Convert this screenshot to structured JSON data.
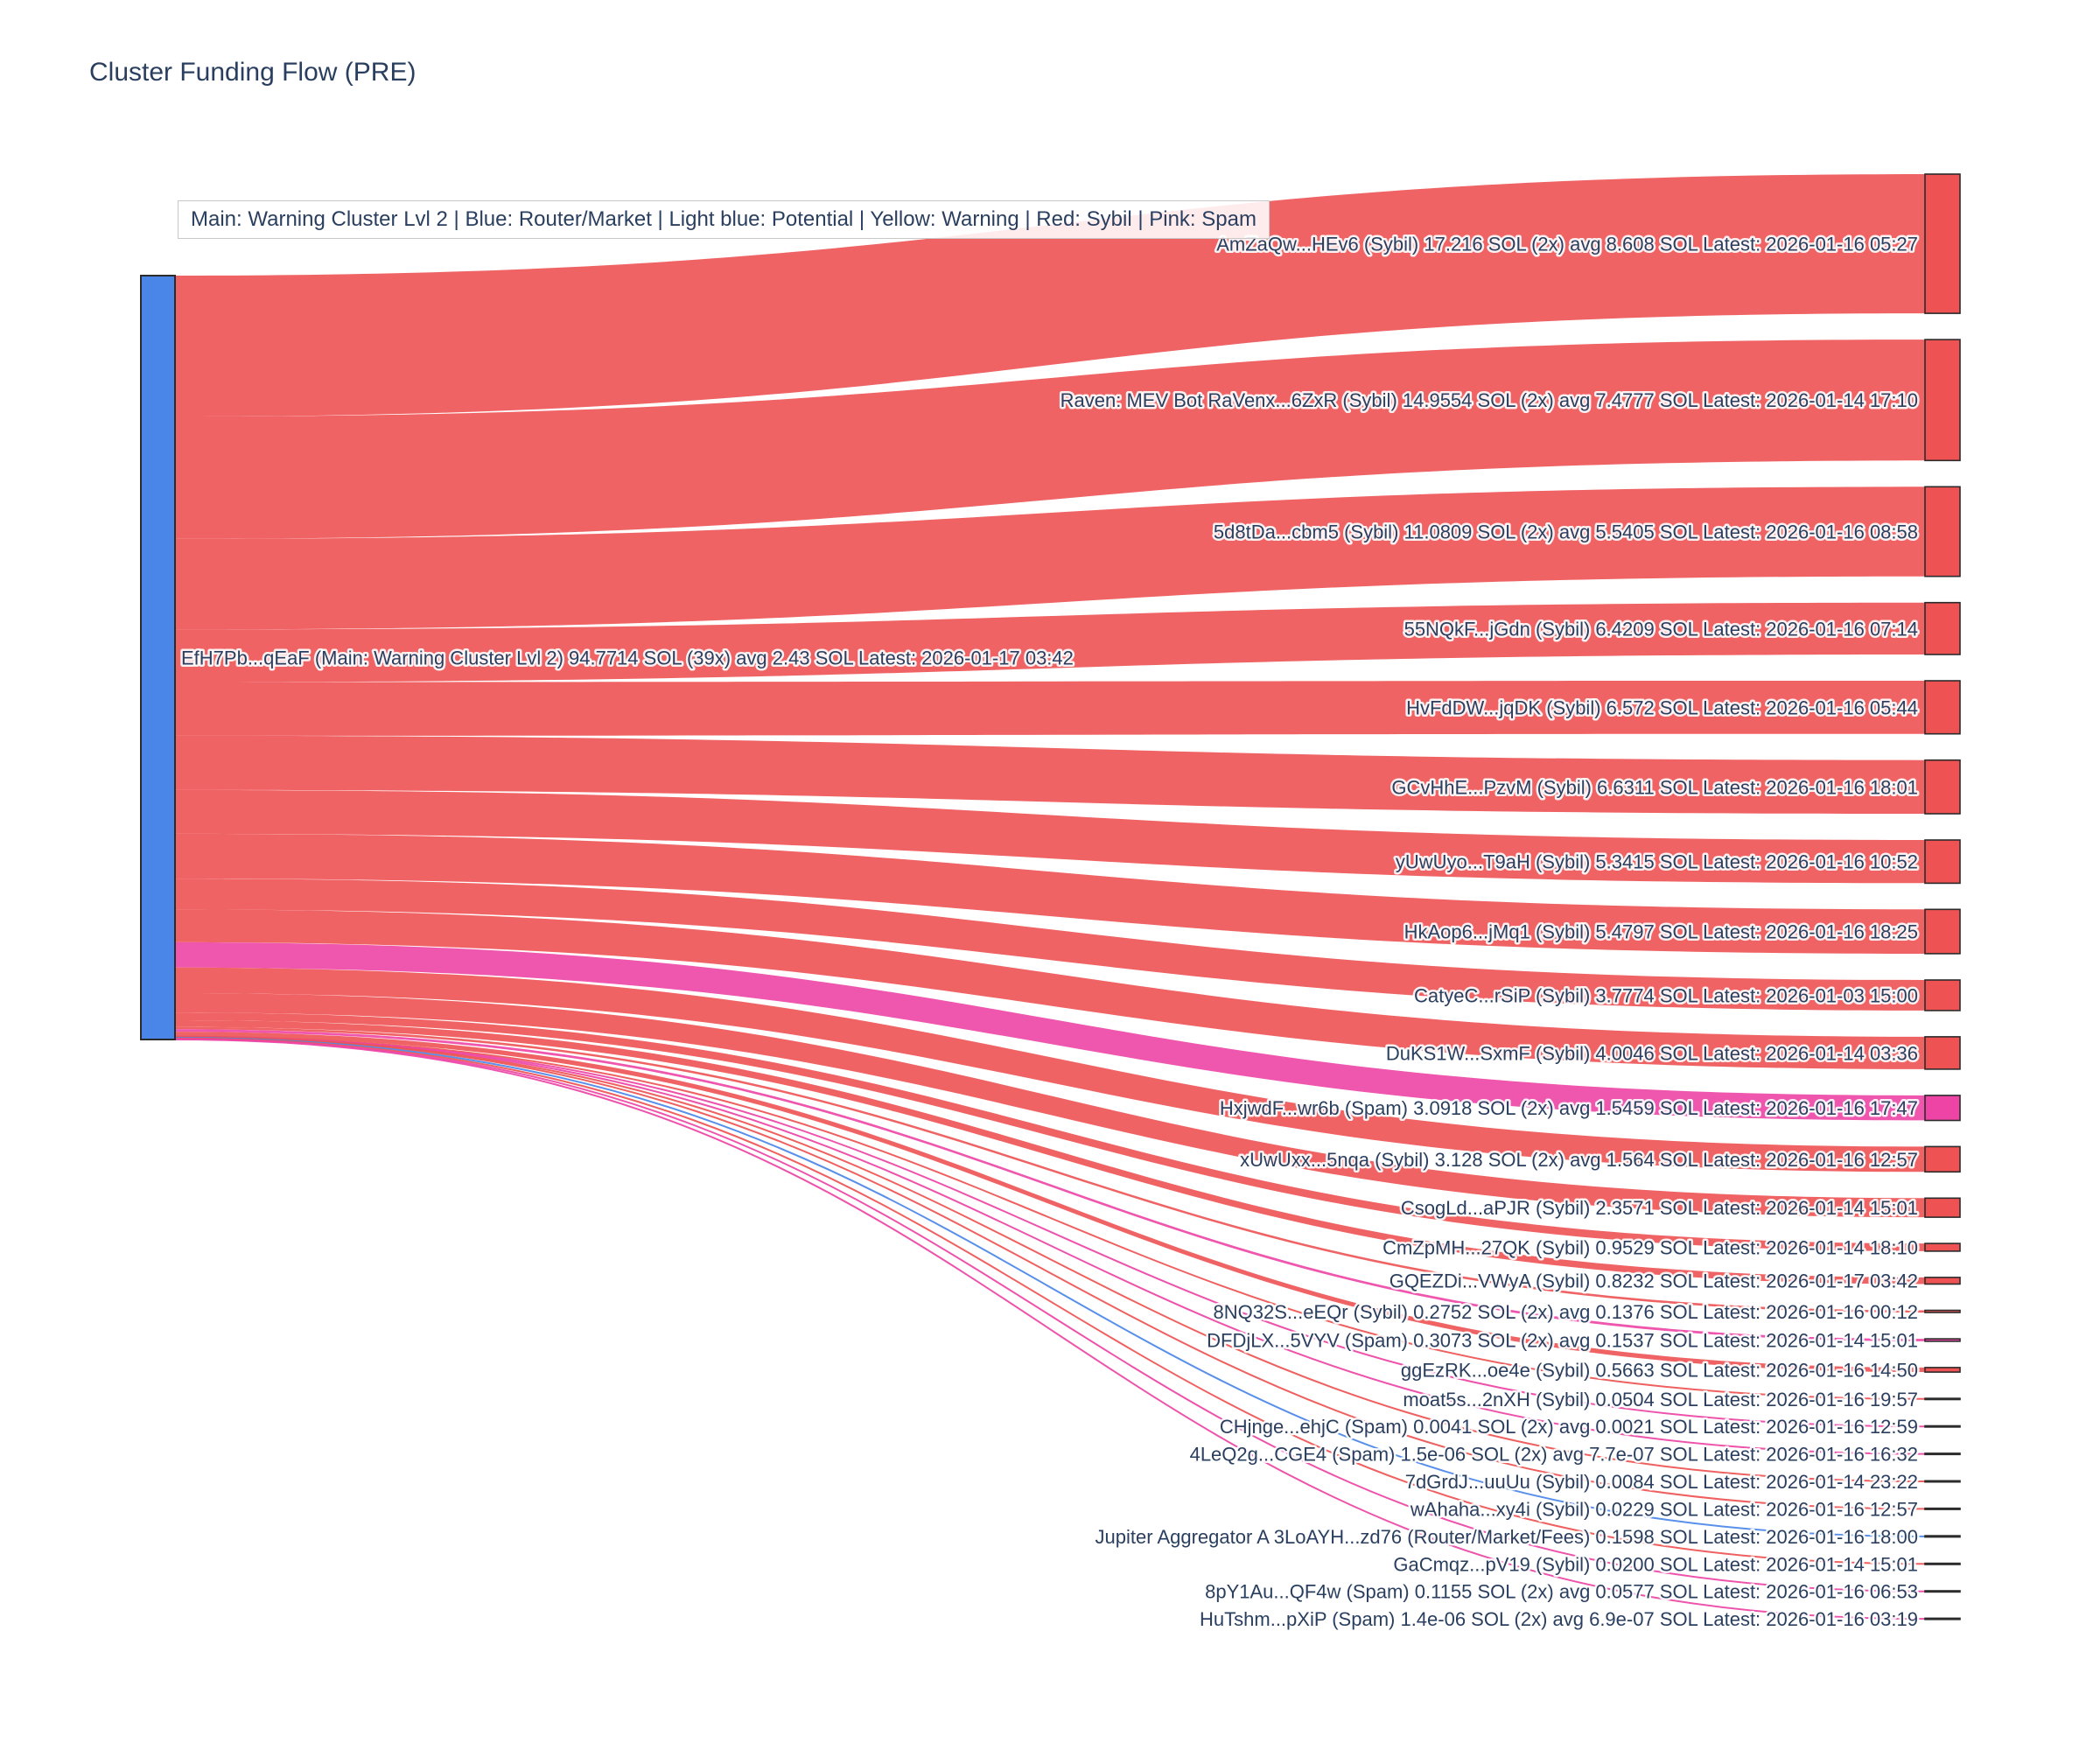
{
  "title": "Cluster Funding Flow (PRE)",
  "legend": "Main: Warning Cluster Lvl 2  |  Blue: Router/Market | Light blue: Potential | Yellow: Warning | Red: Sybil | Pink: Spam",
  "colors": {
    "main": "#4a86e8",
    "sybil": "#ee5253",
    "spam": "#ed44a5",
    "router": "#4a86e8",
    "node_border": "#2b2b2b",
    "label_text": "#2a3f5f",
    "title_text": "#2a3f5f"
  },
  "chart_data": {
    "type": "sankey",
    "title": "Cluster Funding Flow (PRE)",
    "orientation": "horizontal",
    "value_unit": "SOL",
    "source": {
      "label": "EfH7Pb...qEaF (Main: Warning Cluster Lvl 2) 94.7714 SOL (39x) avg 2.43 SOL Latest: 2026-01-17 03:42",
      "value": 94.7714,
      "category": "main"
    },
    "targets": [
      {
        "label": "AmZaQw...HEv6 (Sybil) 17.216 SOL (2x) avg 8.608 SOL Latest: 2026-01-16 05:27",
        "value": 17.216,
        "category": "sybil"
      },
      {
        "label": "Raven: MEV Bot RaVenx...6ZxR (Sybil) 14.9554 SOL (2x) avg 7.4777 SOL Latest: 2026-01-14 17:10",
        "value": 14.9554,
        "category": "sybil"
      },
      {
        "label": "5d8tDa...cbm5 (Sybil) 11.0809 SOL (2x) avg 5.5405 SOL Latest: 2026-01-16 08:58",
        "value": 11.0809,
        "category": "sybil"
      },
      {
        "label": "55NQkF...jGdn (Sybil) 6.4209 SOL Latest: 2026-01-16 07:14",
        "value": 6.4209,
        "category": "sybil"
      },
      {
        "label": "HvFdDW...jqDK (Sybil) 6.572 SOL Latest: 2026-01-16 05:44",
        "value": 6.572,
        "category": "sybil"
      },
      {
        "label": "GCvHhE...PzvM (Sybil) 6.6311 SOL Latest: 2026-01-16 18:01",
        "value": 6.6311,
        "category": "sybil"
      },
      {
        "label": "yUwUyo...T9aH (Sybil) 5.3415 SOL Latest: 2026-01-16 10:52",
        "value": 5.3415,
        "category": "sybil"
      },
      {
        "label": "HkAop6...jMq1 (Sybil) 5.4797 SOL Latest: 2026-01-16 18:25",
        "value": 5.4797,
        "category": "sybil"
      },
      {
        "label": "CatyeC...rSiP (Sybil) 3.7774 SOL Latest: 2026-01-03 15:00",
        "value": 3.7774,
        "category": "sybil"
      },
      {
        "label": "DuKS1W...SxmF (Sybil) 4.0046 SOL Latest: 2026-01-14 03:36",
        "value": 4.0046,
        "category": "sybil"
      },
      {
        "label": "HxjwdF...wr6b (Spam) 3.0918 SOL (2x) avg 1.5459 SOL Latest: 2026-01-16 17:47",
        "value": 3.0918,
        "category": "spam"
      },
      {
        "label": "xUwUxx...5nqa (Sybil) 3.128 SOL (2x) avg 1.564 SOL Latest: 2026-01-16 12:57",
        "value": 3.128,
        "category": "sybil"
      },
      {
        "label": "CsogLd...aPJR (Sybil) 2.3571 SOL Latest: 2026-01-14 15:01",
        "value": 2.3571,
        "category": "sybil"
      },
      {
        "label": "CmZpMH...27QK (Sybil) 0.9529 SOL Latest: 2026-01-14 18:10",
        "value": 0.9529,
        "category": "sybil"
      },
      {
        "label": "GQEZDi...VWyA (Sybil) 0.8232 SOL Latest: 2026-01-17 03:42",
        "value": 0.8232,
        "category": "sybil"
      },
      {
        "label": "8NQ32S...eEQr (Sybil) 0.2752 SOL (2x) avg 0.1376 SOL Latest: 2026-01-16 00:12",
        "value": 0.2752,
        "category": "sybil"
      },
      {
        "label": "DFDjLX...5VYV (Spam) 0.3073 SOL (2x) avg 0.1537 SOL Latest: 2026-01-14 15:01",
        "value": 0.3073,
        "category": "spam"
      },
      {
        "label": "ggEzRK...oe4e (Sybil) 0.5663 SOL Latest: 2026-01-16 14:50",
        "value": 0.5663,
        "category": "sybil"
      },
      {
        "label": "moat5s...2nXH (Sybil) 0.0504 SOL Latest: 2026-01-16 19:57",
        "value": 0.0504,
        "category": "sybil"
      },
      {
        "label": "CHjnge...ehjC (Spam) 0.0041 SOL (2x) avg 0.0021 SOL Latest: 2026-01-16 12:59",
        "value": 0.0041,
        "category": "spam"
      },
      {
        "label": "4LeQ2g...CGE4 (Spam) 1.5e-06 SOL (2x) avg 7.7e-07 SOL Latest: 2026-01-16 16:32",
        "value": 1.5e-06,
        "category": "spam"
      },
      {
        "label": "7dGrdJ...uuUu (Sybil) 0.0084 SOL Latest: 2026-01-14 23:22",
        "value": 0.0084,
        "category": "sybil"
      },
      {
        "label": "wAhaha...xy4i (Sybil) 0.0229 SOL Latest: 2026-01-16 12:57",
        "value": 0.0229,
        "category": "sybil"
      },
      {
        "label": "Jupiter Aggregator A 3LoAYH...zd76 (Router/Market/Fees) 0.1598 SOL Latest: 2026-01-16 18:00",
        "value": 0.1598,
        "category": "router"
      },
      {
        "label": "GaCmqz...pV19 (Sybil) 0.0200 SOL Latest: 2026-01-14 15:01",
        "value": 0.02,
        "category": "sybil"
      },
      {
        "label": "8pY1Au...QF4w (Spam) 0.1155 SOL (2x) avg 0.0577 SOL Latest: 2026-01-16 06:53",
        "value": 0.1155,
        "category": "spam"
      },
      {
        "label": "HuTshm...pXiP (Spam) 1.4e-06 SOL (2x) avg 6.9e-07 SOL Latest: 2026-01-16 03:19",
        "value": 1.4e-06,
        "category": "spam"
      }
    ]
  }
}
